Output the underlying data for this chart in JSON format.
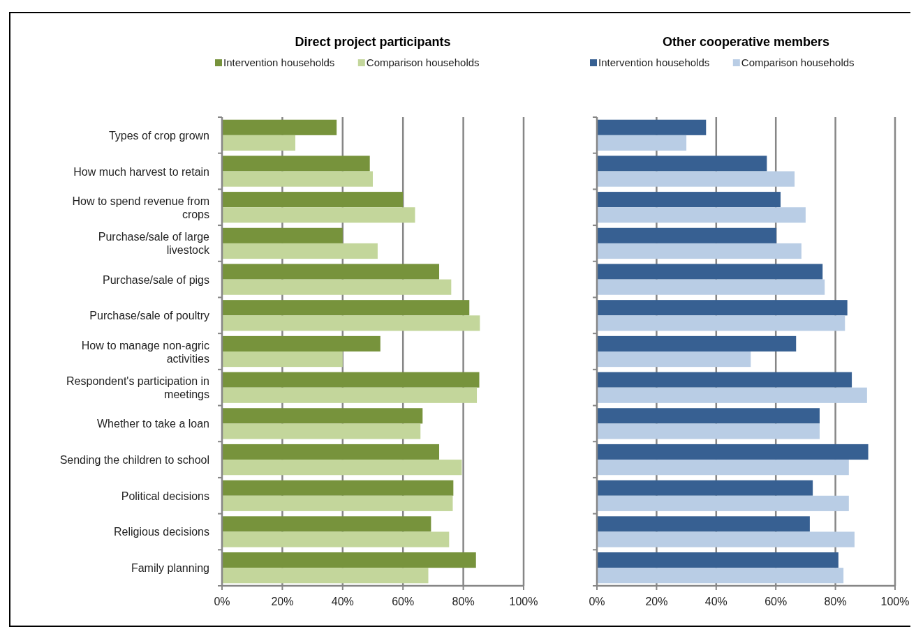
{
  "chart_data": [
    {
      "type": "bar",
      "orientation": "horizontal",
      "title": "Direct project participants",
      "categories": [
        "Types of crop grown",
        "How much harvest to retain",
        "How to spend revenue from crops",
        "Purchase/sale of large livestock",
        "Purchase/sale of pigs",
        "Purchase/sale of poultry",
        "How to manage non-agric activities",
        "Respondent's participation in meetings",
        "Whether to take a loan",
        "Sending the children to school",
        "Political decisions",
        "Religious decisions",
        "Family planning"
      ],
      "series": [
        {
          "name": "Intervention households",
          "color": "#77933c",
          "values": [
            38,
            49,
            60,
            40,
            72,
            82,
            52.5,
            85.3,
            66.5,
            72,
            76.7,
            69.3,
            84.2
          ]
        },
        {
          "name": "Comparison households",
          "color": "#c3d69b",
          "values": [
            24.3,
            50,
            64,
            51.6,
            76,
            85.5,
            40,
            84.5,
            65.8,
            79.5,
            76.5,
            75.3,
            68.4
          ]
        }
      ],
      "xlim": [
        0,
        100
      ],
      "xticks": [
        {
          "value": 0,
          "label": "0%"
        },
        {
          "value": 20,
          "label": "20%"
        },
        {
          "value": 40,
          "label": "40%"
        },
        {
          "value": 60,
          "label": "60%"
        },
        {
          "value": 80,
          "label": "80%"
        },
        {
          "value": 100,
          "label": "100%"
        }
      ],
      "grid": "x",
      "legend": "top"
    },
    {
      "type": "bar",
      "orientation": "horizontal",
      "title": "Other cooperative members",
      "categories": [
        null,
        null,
        null,
        null,
        null,
        null,
        null,
        null,
        null,
        null,
        null,
        null,
        null
      ],
      "series": [
        {
          "name": "Intervention households",
          "color": "#376092",
          "values": [
            36.6,
            57,
            61.6,
            60.2,
            75.7,
            84,
            66.8,
            85.5,
            74.7,
            91,
            72.4,
            71.4,
            81
          ]
        },
        {
          "name": "Comparison households",
          "color": "#b9cde5",
          "values": [
            30,
            66.3,
            70,
            68.6,
            76.4,
            83.2,
            51.6,
            90.6,
            74.7,
            84.5,
            84.5,
            86.4,
            82.7
          ]
        }
      ],
      "xlim": [
        0,
        100
      ],
      "xticks": [
        {
          "value": 0,
          "label": "0%"
        },
        {
          "value": 20,
          "label": "20%"
        },
        {
          "value": 40,
          "label": "40%"
        },
        {
          "value": 60,
          "label": "60%"
        },
        {
          "value": 80,
          "label": "80%"
        },
        {
          "value": 100,
          "label": "100%"
        }
      ],
      "grid": "x",
      "legend": "top",
      "tick_labels": "x"
    }
  ]
}
